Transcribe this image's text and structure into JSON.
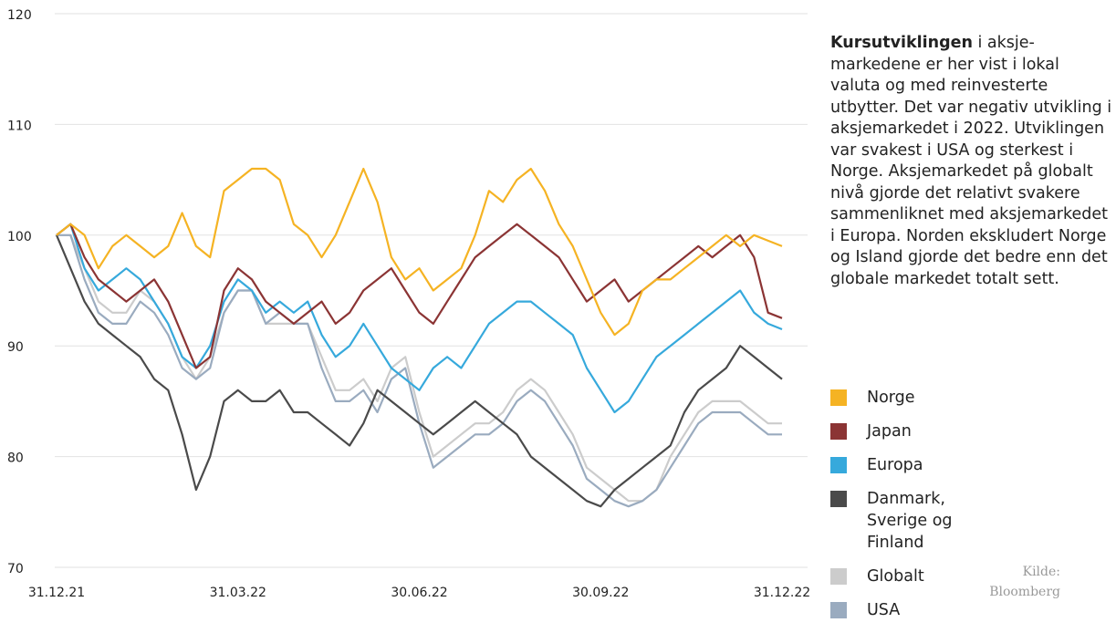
{
  "chart_data": {
    "type": "line",
    "categories": [
      "31.12.21",
      null,
      null,
      null,
      null,
      null,
      null,
      null,
      null,
      null,
      null,
      null,
      null,
      "31.03.22",
      null,
      null,
      null,
      null,
      null,
      null,
      null,
      null,
      null,
      null,
      null,
      null,
      "30.06.22",
      null,
      null,
      null,
      null,
      null,
      null,
      null,
      null,
      null,
      null,
      null,
      null,
      "30.09.22",
      null,
      null,
      null,
      null,
      null,
      null,
      null,
      null,
      null,
      null,
      null,
      null,
      "31.12.22"
    ],
    "ylim": [
      70,
      120
    ],
    "yticks": [
      70,
      80,
      90,
      100,
      110,
      120
    ],
    "grid": true,
    "series": [
      {
        "name": "Globalt",
        "color": "#cccccc",
        "values": [
          100,
          100,
          97,
          94,
          93,
          93,
          95,
          94,
          92,
          89,
          87,
          89,
          93,
          95,
          95,
          92,
          92,
          92,
          92,
          89,
          86,
          86,
          87,
          85,
          88,
          89,
          84,
          80,
          81,
          82,
          83,
          83,
          84,
          86,
          87,
          86,
          84,
          82,
          79,
          78,
          77,
          76,
          76,
          77,
          80,
          82,
          84,
          85,
          85,
          85,
          84,
          83,
          83
        ]
      },
      {
        "name": "USA",
        "color": "#9aabbf",
        "values": [
          100,
          100,
          96,
          93,
          92,
          92,
          94,
          93,
          91,
          88,
          87,
          88,
          93,
          95,
          95,
          92,
          93,
          92,
          92,
          88,
          85,
          85,
          86,
          84,
          87,
          88,
          83,
          79,
          80,
          81,
          82,
          82,
          83,
          85,
          86,
          85,
          83,
          81,
          78,
          77,
          76,
          75.5,
          76,
          77,
          79,
          81,
          83,
          84,
          84,
          84,
          83,
          82,
          82
        ]
      },
      {
        "name": "Danmark, Sverige og Finland",
        "color": "#4a4a4a",
        "values": [
          100,
          97,
          94,
          92,
          91,
          90,
          89,
          87,
          86,
          82,
          77,
          80,
          85,
          86,
          85,
          85,
          86,
          84,
          84,
          83,
          82,
          81,
          83,
          86,
          85,
          84,
          83,
          82,
          83,
          84,
          85,
          84,
          83,
          82,
          80,
          79,
          78,
          77,
          76,
          75.5,
          77,
          78,
          79,
          80,
          81,
          84,
          86,
          87,
          88,
          90,
          89,
          88,
          87
        ]
      },
      {
        "name": "Europa",
        "color": "#36a9dc",
        "values": [
          100,
          101,
          97,
          95,
          96,
          97,
          96,
          94,
          92,
          89,
          88,
          90,
          94,
          96,
          95,
          93,
          94,
          93,
          94,
          91,
          89,
          90,
          92,
          90,
          88,
          87,
          86,
          88,
          89,
          88,
          90,
          92,
          93,
          94,
          94,
          93,
          92,
          91,
          88,
          86,
          84,
          85,
          87,
          89,
          90,
          91,
          92,
          93,
          94,
          95,
          93,
          92,
          91.5
        ]
      },
      {
        "name": "Japan",
        "color": "#8b3434",
        "values": [
          100,
          101,
          98,
          96,
          95,
          94,
          95,
          96,
          94,
          91,
          88,
          89,
          95,
          97,
          96,
          94,
          93,
          92,
          93,
          94,
          92,
          93,
          95,
          96,
          97,
          95,
          93,
          92,
          94,
          96,
          98,
          99,
          100,
          101,
          100,
          99,
          98,
          96,
          94,
          95,
          96,
          94,
          95,
          96,
          97,
          98,
          99,
          98,
          99,
          100,
          98,
          93,
          92.5
        ]
      },
      {
        "name": "Norge",
        "color": "#f5b323",
        "values": [
          100,
          101,
          100,
          97,
          99,
          100,
          99,
          98,
          99,
          102,
          99,
          98,
          104,
          105,
          106,
          106,
          105,
          101,
          100,
          98,
          100,
          103,
          106,
          103,
          98,
          96,
          97,
          95,
          96,
          97,
          100,
          104,
          103,
          105,
          106,
          104,
          101,
          99,
          96,
          93,
          91,
          92,
          95,
          96,
          96,
          97,
          98,
          99,
          100,
          99,
          100,
          99.5,
          99
        ]
      }
    ],
    "legend_order": [
      5,
      4,
      3,
      2,
      0,
      1
    ],
    "description_bold": "Kursutviklingen",
    "description": " i aksje-markedene er her vist i lokal valuta og med reinvesterte utbytter. Det var negativ utvikling i aksjemarkedet i 2022. Utviklingen var svakest i USA og sterkest i Norge. Aksjemarkedet på globalt nivå gjorde det relativt svakere sammenliknet med aksjemarkedet i Europa. Norden ekskludert Norge og Island gjorde det bedre enn det globale markedet totalt sett.",
    "source": "Kilde: Bloomberg"
  }
}
